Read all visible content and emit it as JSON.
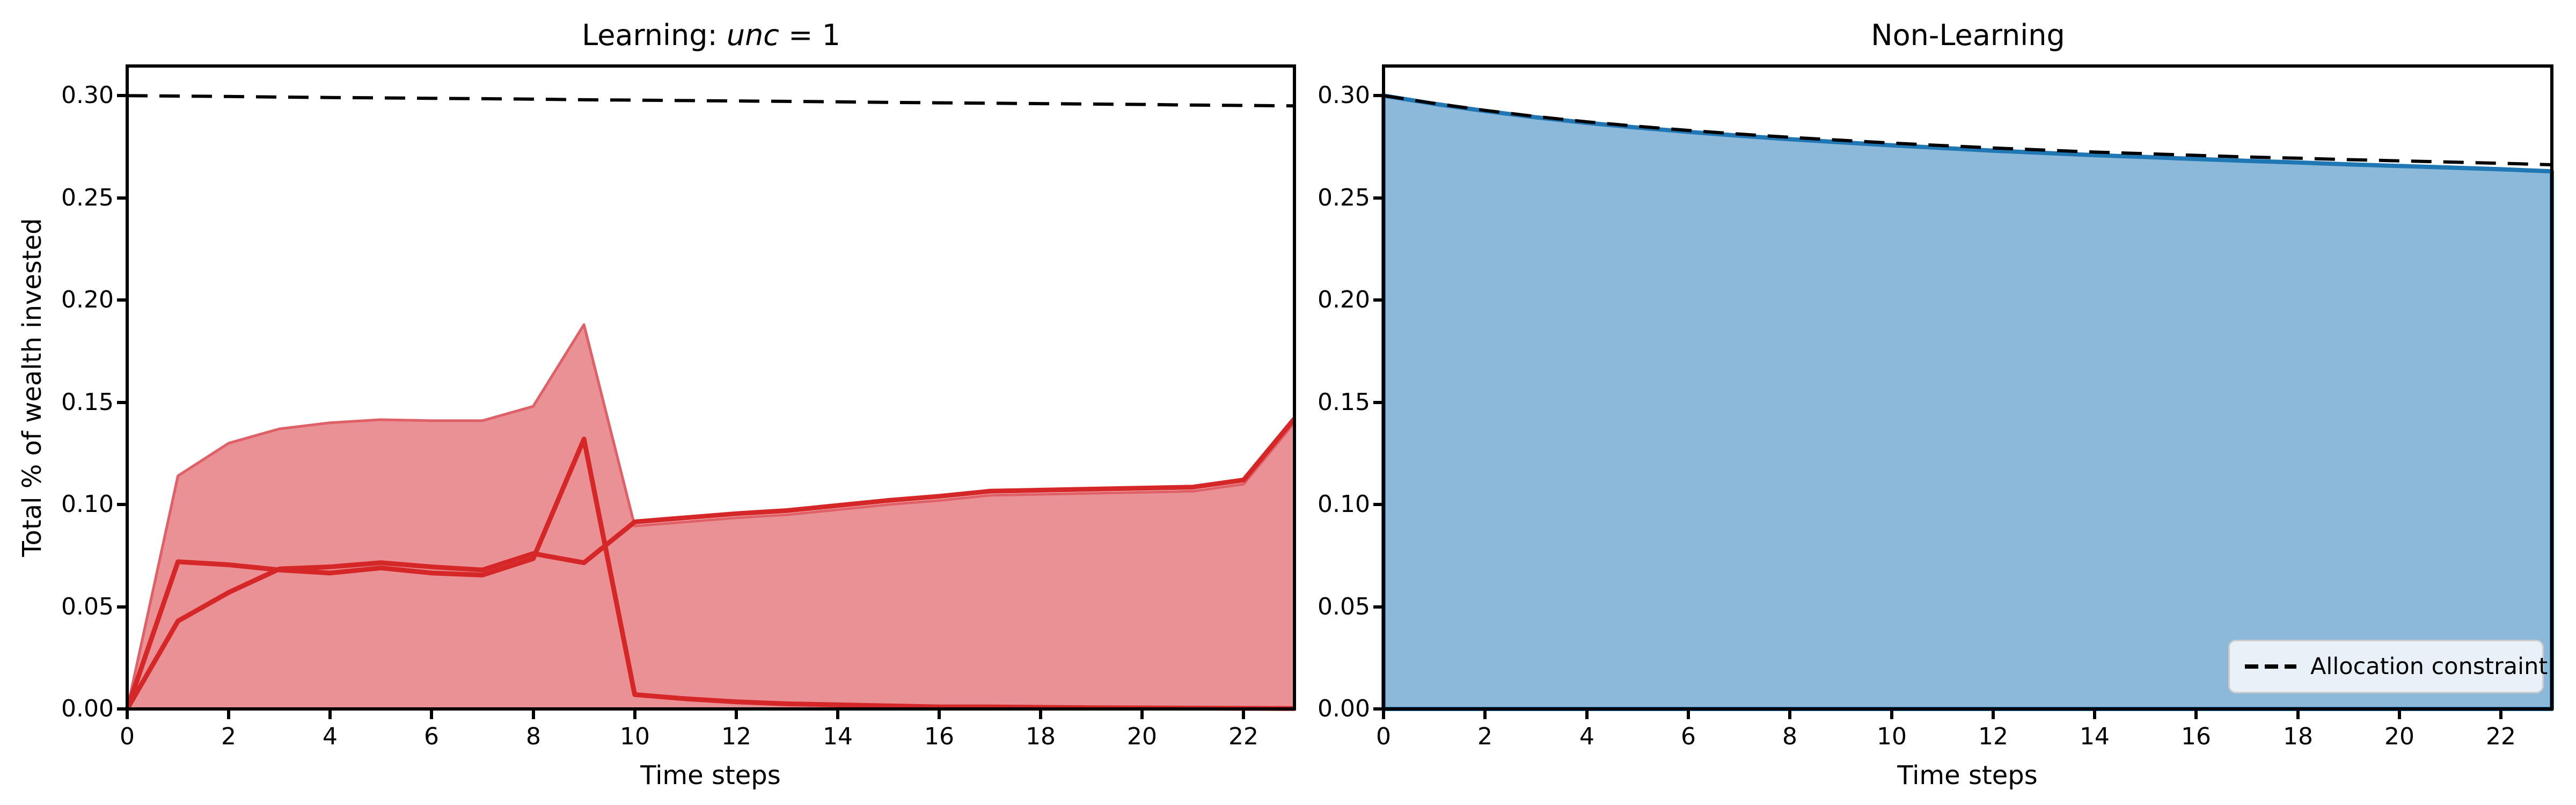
{
  "figure": {
    "background": "#ffffff",
    "legend": {
      "label": "Allocation constraint",
      "background": "#e8f1f7",
      "border": "#cccccc"
    }
  },
  "chart_data": [
    {
      "type": "area",
      "title_parts": {
        "prefix": "Learning: ",
        "italic": "unc",
        "suffix": " = 1"
      },
      "xlabel": "Time steps",
      "ylabel": "Total % of wealth invested",
      "xlim": [
        0,
        23
      ],
      "ylim": [
        0,
        0.3145
      ],
      "grid": false,
      "x": [
        0,
        1,
        2,
        3,
        4,
        5,
        6,
        7,
        8,
        9,
        10,
        11,
        12,
        13,
        14,
        15,
        16,
        17,
        18,
        19,
        20,
        21,
        22,
        23
      ],
      "xticks": [
        {
          "v": 0,
          "label": "0"
        },
        {
          "v": 2,
          "label": "2"
        },
        {
          "v": 4,
          "label": "4"
        },
        {
          "v": 6,
          "label": "6"
        },
        {
          "v": 8,
          "label": "8"
        },
        {
          "v": 10,
          "label": "10"
        },
        {
          "v": 12,
          "label": "12"
        },
        {
          "v": 14,
          "label": "14"
        },
        {
          "v": 16,
          "label": "16"
        },
        {
          "v": 18,
          "label": "18"
        },
        {
          "v": 20,
          "label": "20"
        },
        {
          "v": 22,
          "label": "22"
        }
      ],
      "yticks": [
        {
          "v": 0.0,
          "label": "0.00"
        },
        {
          "v": 0.05,
          "label": "0.05"
        },
        {
          "v": 0.1,
          "label": "0.10"
        },
        {
          "v": 0.15,
          "label": "0.15"
        },
        {
          "v": 0.2,
          "label": "0.20"
        },
        {
          "v": 0.25,
          "label": "0.25"
        },
        {
          "v": 0.3,
          "label": "0.30"
        }
      ],
      "series": [
        {
          "name": "uncertainty-band",
          "style": "band",
          "fill_color": "#ea9195",
          "edge_color": "#df6066",
          "edge_width": 5,
          "values": [
            0,
            0.114,
            0.13,
            0.137,
            0.14,
            0.1415,
            0.141,
            0.141,
            0.148,
            0.188,
            0.0895,
            0.0915,
            0.0935,
            0.095,
            0.0975,
            0.1,
            0.102,
            0.1045,
            0.105,
            0.1055,
            0.106,
            0.1065,
            0.11,
            0.14
          ]
        },
        {
          "name": "run-line-spiker",
          "style": "line",
          "color": "#d62728",
          "width": 9,
          "values": [
            0,
            0.072,
            0.0705,
            0.068,
            0.0665,
            0.069,
            0.0665,
            0.0655,
            0.0735,
            0.132,
            0.007,
            0.005,
            0.0035,
            0.0025,
            0.002,
            0.0015,
            0.001,
            0.001,
            0.0008,
            0.0006,
            0.0005,
            0.0004,
            0.0003,
            0.0002
          ]
        },
        {
          "name": "run-line-survivor",
          "style": "line",
          "color": "#d62728",
          "width": 9,
          "values": [
            0,
            0.043,
            0.057,
            0.0685,
            0.0695,
            0.0715,
            0.0695,
            0.068,
            0.076,
            0.0715,
            0.0915,
            0.0935,
            0.0955,
            0.097,
            0.0995,
            0.102,
            0.104,
            0.1065,
            0.107,
            0.1075,
            0.108,
            0.1085,
            0.112,
            0.142
          ]
        },
        {
          "name": "allocation-constraint",
          "style": "dashed",
          "color": "#000000",
          "width": 6,
          "values": [
            0.3,
            0.2998,
            0.2996,
            0.2993,
            0.2991,
            0.2989,
            0.2987,
            0.2985,
            0.2983,
            0.298,
            0.2978,
            0.2976,
            0.2974,
            0.2972,
            0.297,
            0.2967,
            0.2965,
            0.2963,
            0.2961,
            0.2959,
            0.2957,
            0.2954,
            0.2952,
            0.295
          ]
        }
      ]
    },
    {
      "type": "area",
      "title": "Non-Learning",
      "xlabel": "Time steps",
      "xlim": [
        0,
        23
      ],
      "ylim": [
        0,
        0.3145
      ],
      "grid": false,
      "legend_position": "lower right",
      "x": [
        0,
        1,
        2,
        3,
        4,
        5,
        6,
        7,
        8,
        9,
        10,
        11,
        12,
        13,
        14,
        15,
        16,
        17,
        18,
        19,
        20,
        21,
        22,
        23
      ],
      "xticks": [
        {
          "v": 0,
          "label": "0"
        },
        {
          "v": 2,
          "label": "2"
        },
        {
          "v": 4,
          "label": "4"
        },
        {
          "v": 6,
          "label": "6"
        },
        {
          "v": 8,
          "label": "8"
        },
        {
          "v": 10,
          "label": "10"
        },
        {
          "v": 12,
          "label": "12"
        },
        {
          "v": 14,
          "label": "14"
        },
        {
          "v": 16,
          "label": "16"
        },
        {
          "v": 18,
          "label": "18"
        },
        {
          "v": 20,
          "label": "20"
        },
        {
          "v": 22,
          "label": "22"
        }
      ],
      "yticks": [
        {
          "v": 0.0,
          "label": "0.00"
        },
        {
          "v": 0.05,
          "label": "0.05"
        },
        {
          "v": 0.1,
          "label": "0.10"
        },
        {
          "v": 0.15,
          "label": "0.15"
        },
        {
          "v": 0.2,
          "label": "0.20"
        },
        {
          "v": 0.25,
          "label": "0.25"
        },
        {
          "v": 0.3,
          "label": "0.30"
        }
      ],
      "series": [
        {
          "name": "invested-area",
          "style": "band",
          "fill_color": "#8cb8da",
          "edge_color": "#1f77b4",
          "edge_width": 8,
          "values": [
            0.3,
            0.296,
            0.2925,
            0.2894,
            0.2867,
            0.2844,
            0.2823,
            0.2804,
            0.2787,
            0.2772,
            0.2757,
            0.2744,
            0.2731,
            0.272,
            0.2709,
            0.27,
            0.269,
            0.2681,
            0.2673,
            0.2664,
            0.2656,
            0.2648,
            0.264,
            0.263
          ]
        },
        {
          "name": "allocation-constraint",
          "style": "dashed",
          "color": "#000000",
          "width": 6,
          "values": [
            0.3,
            0.2962,
            0.2928,
            0.2898,
            0.2872,
            0.285,
            0.283,
            0.2812,
            0.2796,
            0.2782,
            0.2768,
            0.2756,
            0.2744,
            0.2734,
            0.2724,
            0.2716,
            0.2708,
            0.27,
            0.2694,
            0.2687,
            0.2681,
            0.2675,
            0.2669,
            0.2662
          ]
        }
      ]
    }
  ]
}
